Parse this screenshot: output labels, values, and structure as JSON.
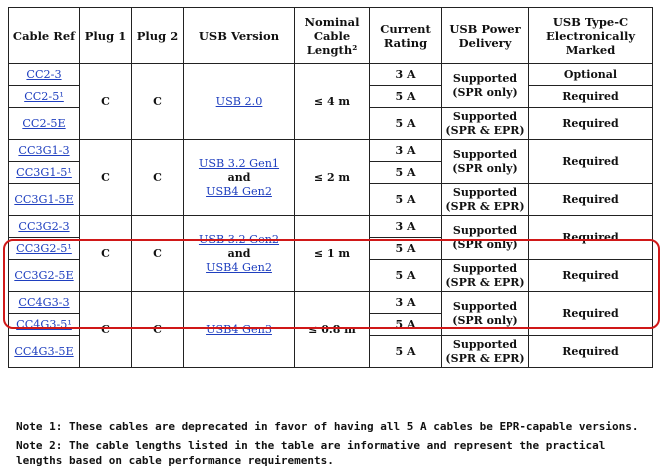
{
  "headers": {
    "cable_ref": "Cable Ref",
    "plug1": "Plug 1",
    "plug2": "Plug 2",
    "usb_version": "USB Version",
    "length_l1": "Nominal",
    "length_l2": "Cable",
    "length_l3": "Length²",
    "current_l1": "Current",
    "current_l2": "Rating",
    "pd_l1": "USB Power",
    "pd_l2": "Delivery",
    "marked_l1": "USB Type-C",
    "marked_l2": "Electronically",
    "marked_l3": "Marked"
  },
  "groups": [
    {
      "refs": [
        "CC2-3",
        "CC2-5¹",
        "CC2-5E"
      ],
      "plug1": "C",
      "plug2": "C",
      "version_l1": "USB 2.0",
      "version_and": "",
      "version_l2": "",
      "length": "≤ 4 m",
      "currents": [
        "3 A",
        "5 A",
        "5 A"
      ],
      "pd_spr_l1": "Supported",
      "pd_spr_l2": "(SPR only)",
      "pd_epr_l1": "Supported",
      "pd_epr_l2": "(SPR & EPR)",
      "marked_top": "Optional",
      "marked_mid": "Required",
      "marked_bottom": "Required"
    },
    {
      "refs": [
        "CC3G1-3",
        "CC3G1-5¹",
        "CC3G1-5E"
      ],
      "plug1": "C",
      "plug2": "C",
      "version_l1": "USB 3.2 Gen1",
      "version_and": "and",
      "version_l2": "USB4 Gen2",
      "length": "≤ 2 m",
      "currents": [
        "3 A",
        "5 A",
        "5 A"
      ],
      "pd_spr_l1": "Supported",
      "pd_spr_l2": "(SPR only)",
      "pd_epr_l1": "Supported",
      "pd_epr_l2": "(SPR & EPR)",
      "marked_top": "Required",
      "marked_bottom": "Required"
    },
    {
      "refs": [
        "CC3G2-3",
        "CC3G2-5¹",
        "CC3G2-5E"
      ],
      "plug1": "C",
      "plug2": "C",
      "version_l1": "USB 3.2 Gen2",
      "version_and": "and",
      "version_l2": "USB4 Gen2",
      "length": "≤ 1 m",
      "currents": [
        "3 A",
        "5 A",
        "5 A"
      ],
      "pd_spr_l1": "Supported",
      "pd_spr_l2": "(SPR only)",
      "pd_epr_l1": "Supported",
      "pd_epr_l2": "(SPR & EPR)",
      "marked_top": "Required",
      "marked_bottom": "Required"
    },
    {
      "refs": [
        "CC4G3-3",
        "CC4G3-5¹",
        "CC4G3-5E"
      ],
      "plug1": "C",
      "plug2": "C",
      "version_l1": "USB4 Gen3",
      "version_and": "",
      "version_l2": "",
      "length": "≤ 0.8 m",
      "currents": [
        "3 A",
        "5 A",
        "5 A"
      ],
      "pd_spr_l1": "Supported",
      "pd_spr_l2": "(SPR only)",
      "pd_epr_l1": "Supported",
      "pd_epr_l2": "(SPR & EPR)",
      "marked_top": "Required",
      "marked_bottom": "Required"
    }
  ],
  "notes": {
    "note1": "Note 1: These cables are deprecated in favor of having all 5 A cables be EPR-capable versions.",
    "note2": "Note 2: The cable lengths listed in the table are informative and represent the practical lengths based on cable performance requirements."
  },
  "colors": {
    "link": "#1f3fbf",
    "highlight": "#d01818",
    "border": "#222222"
  }
}
